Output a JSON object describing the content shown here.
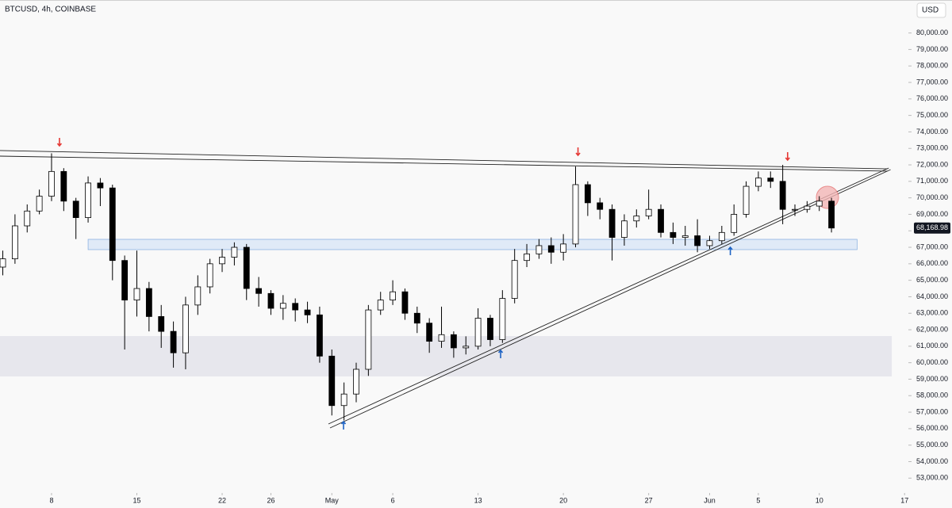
{
  "chart_data": {
    "type": "candlestick",
    "title": "BTCUSD, 4h, COINBASE",
    "currency_button": "USD",
    "x": [
      -4,
      -3,
      -2,
      -1,
      0,
      1,
      2,
      3,
      4,
      5,
      6,
      7,
      8,
      9,
      10,
      11,
      12,
      13,
      14,
      15,
      16,
      17,
      18,
      19,
      20,
      21,
      22,
      23,
      24,
      25,
      26,
      27,
      28,
      29,
      30,
      31,
      32,
      33,
      34,
      35,
      36,
      37,
      38,
      39,
      40,
      41,
      42,
      43,
      44,
      45,
      46,
      47,
      48,
      49,
      50,
      51,
      52,
      53,
      54,
      55,
      56,
      57,
      58,
      59,
      60,
      61,
      62,
      63,
      64
    ],
    "series": {
      "open": [
        65800,
        66300,
        68300,
        69200,
        70100,
        71600,
        69800,
        68800,
        70900,
        70600,
        66200,
        63800,
        64500,
        62800,
        61900,
        60600,
        63500,
        64600,
        66000,
        66400,
        67000,
        64500,
        64200,
        63300,
        63600,
        63200,
        62900,
        60400,
        57400,
        58100,
        59600,
        63200,
        63800,
        64300,
        63000,
        62400,
        61300,
        61700,
        60900,
        61000,
        62700,
        61400,
        63900,
        66200,
        66600,
        67100,
        66700,
        67200,
        70800,
        69700,
        69300,
        67600,
        68600,
        68900,
        69300,
        67900,
        67600,
        67700,
        67100,
        67400,
        67900,
        69000,
        70700,
        71200,
        71000,
        69300,
        69300,
        69500,
        69800
      ],
      "high": [
        66800,
        69000,
        69600,
        70500,
        72700,
        71800,
        70000,
        71300,
        71200,
        70800,
        66500,
        66800,
        64900,
        63500,
        62500,
        64000,
        65300,
        66300,
        66900,
        67300,
        67200,
        65200,
        64400,
        64100,
        63900,
        63700,
        63400,
        60800,
        58800,
        60000,
        63500,
        64300,
        65000,
        64500,
        63400,
        62700,
        63400,
        61900,
        61600,
        63300,
        62900,
        64400,
        66900,
        67200,
        67500,
        67600,
        67800,
        71900,
        71000,
        70000,
        69600,
        69000,
        69300,
        70500,
        69600,
        68500,
        68300,
        68700,
        67700,
        68300,
        69600,
        71000,
        71600,
        71600,
        72000,
        69600,
        69800,
        70100,
        70000
      ],
      "low": [
        65300,
        66000,
        67900,
        69000,
        69800,
        69200,
        67500,
        68500,
        69500,
        65000,
        60800,
        62800,
        61900,
        60900,
        59700,
        59600,
        62900,
        64200,
        65500,
        65900,
        63800,
        63400,
        62900,
        62600,
        62500,
        62400,
        60000,
        56800,
        56500,
        57600,
        59200,
        62900,
        63500,
        62600,
        61800,
        60600,
        60900,
        60300,
        60500,
        60800,
        61000,
        61200,
        63600,
        65800,
        66300,
        66000,
        66200,
        67000,
        68900,
        68700,
        66200,
        67100,
        68200,
        68700,
        67600,
        67200,
        67100,
        66700,
        66900,
        67200,
        67700,
        68800,
        70400,
        70600,
        68400,
        68900,
        69100,
        69200,
        67900
      ],
      "close": [
        66300,
        68300,
        69200,
        70100,
        71600,
        69800,
        68800,
        70900,
        70600,
        66200,
        63800,
        64500,
        62800,
        61900,
        60600,
        63500,
        64600,
        66000,
        66400,
        67000,
        64500,
        64200,
        63300,
        63600,
        63200,
        62900,
        60400,
        57400,
        58100,
        59600,
        63200,
        63800,
        64300,
        63000,
        62400,
        61300,
        61700,
        60900,
        61000,
        62700,
        61400,
        63900,
        66200,
        66600,
        67100,
        66700,
        67200,
        70800,
        69700,
        69300,
        67600,
        68600,
        68900,
        69300,
        67900,
        67600,
        67700,
        67100,
        67400,
        67900,
        69000,
        70700,
        71200,
        71000,
        69300,
        69300,
        69500,
        69800,
        68168.98
      ]
    },
    "last_price_label": "68,168.98",
    "up_color": "#ffffff",
    "down_color": "#000000",
    "wick_color": "#000000",
    "xlim": [
      -4.23,
      70.31
    ],
    "ylim": [
      52100,
      82000
    ],
    "xticks": [
      {
        "value": 0,
        "label": "8"
      },
      {
        "value": 7,
        "label": "15"
      },
      {
        "value": 14,
        "label": "22"
      },
      {
        "value": 18,
        "label": "26"
      },
      {
        "value": 23,
        "label": "May"
      },
      {
        "value": 28,
        "label": "6"
      },
      {
        "value": 35,
        "label": "13"
      },
      {
        "value": 42,
        "label": "20"
      },
      {
        "value": 49,
        "label": "27"
      },
      {
        "value": 54,
        "label": "Jun"
      },
      {
        "value": 58,
        "label": "5"
      },
      {
        "value": 63,
        "label": "10"
      },
      {
        "value": 70,
        "label": "17"
      }
    ],
    "yticks": [
      {
        "value": 53000,
        "label": "53,000.00"
      },
      {
        "value": 54000,
        "label": "54,000.00"
      },
      {
        "value": 55000,
        "label": "55,000.00"
      },
      {
        "value": 56000,
        "label": "56,000.00"
      },
      {
        "value": 57000,
        "label": "57,000.00"
      },
      {
        "value": 58000,
        "label": "58,000.00"
      },
      {
        "value": 59000,
        "label": "59,000.00"
      },
      {
        "value": 60000,
        "label": "60,000.00"
      },
      {
        "value": 61000,
        "label": "61,000.00"
      },
      {
        "value": 62000,
        "label": "62,000.00"
      },
      {
        "value": 63000,
        "label": "63,000.00"
      },
      {
        "value": 64000,
        "label": "64,000.00"
      },
      {
        "value": 65000,
        "label": "65,000.00"
      },
      {
        "value": 66000,
        "label": "66,000.00"
      },
      {
        "value": 67000,
        "label": "67,000.00"
      },
      {
        "value": 68000,
        "label": "68,000.00"
      },
      {
        "value": 69000,
        "label": "69,000.00"
      },
      {
        "value": 70000,
        "label": "70,000.00"
      },
      {
        "value": 71000,
        "label": "71,000.00"
      },
      {
        "value": 72000,
        "label": "72,000.00"
      },
      {
        "value": 73000,
        "label": "73,000.00"
      },
      {
        "value": 74000,
        "label": "74,000.00"
      },
      {
        "value": 75000,
        "label": "75,000.00"
      },
      {
        "value": 76000,
        "label": "76,000.00"
      },
      {
        "value": 77000,
        "label": "77,000.00"
      },
      {
        "value": 78000,
        "label": "78,000.00"
      },
      {
        "value": 79000,
        "label": "79,000.00"
      },
      {
        "value": 80000,
        "label": "80,000.00"
      }
    ],
    "zones": [
      {
        "x": [
          -4.23,
          68.95
        ],
        "y": [
          59167,
          61618
        ],
        "color": "#e6e6ec"
      },
      {
        "x": [
          3.0,
          66.1
        ],
        "y": [
          66858,
          67483
        ],
        "color": "#dfeaf7"
      }
    ],
    "trendlines": [
      {
        "x": [
          -4.23,
          68.6
        ],
        "y": [
          72870,
          71760
        ]
      },
      {
        "x": [
          -4.23,
          68.6
        ],
        "y": [
          72530,
          71620
        ]
      },
      {
        "x": [
          22.72,
          68.7
        ],
        "y": [
          56283,
          71810
        ]
      },
      {
        "x": [
          22.85,
          68.85
        ],
        "y": [
          56043,
          71713
        ]
      }
    ],
    "down_arrows": {
      "color": "#e53935",
      "x": [
        0.65,
        43.2,
        60.4
      ],
      "y": [
        73347,
        72770,
        72482
      ]
    },
    "up_arrows": {
      "color": "#1e63c4",
      "x": [
        23.96,
        36.85,
        55.7
      ],
      "y": [
        56138,
        60465,
        66714
      ]
    },
    "circle": {
      "x": 63.67,
      "y": 70031,
      "color": "#f4b6b6"
    }
  }
}
